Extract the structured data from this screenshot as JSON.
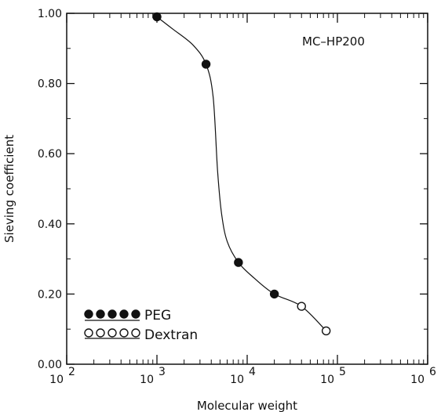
{
  "chart_data": {
    "type": "scatter",
    "xscale": "log",
    "xlim": [
      100,
      1000000
    ],
    "ylim": [
      0.0,
      1.0
    ],
    "xlabel": "Molecular weight",
    "ylabel": "Sieving coefficient",
    "annotation": "MC–HP200",
    "grid": false,
    "legend_position": "bottom-left",
    "y_ticks": [
      "0.00",
      "0.20",
      "0.40",
      "0.60",
      "0.80",
      "1.00"
    ],
    "x_ticks": [
      {
        "base": "10",
        "exp": "2"
      },
      {
        "base": "10",
        "exp": "3"
      },
      {
        "base": "10",
        "exp": "4"
      },
      {
        "base": "10",
        "exp": "5"
      },
      {
        "base": "10",
        "exp": "6"
      }
    ],
    "series": [
      {
        "name": "PEG",
        "marker": "filled-circle",
        "x": [
          1000,
          3500,
          8000,
          20000
        ],
        "y": [
          0.99,
          0.855,
          0.29,
          0.2
        ]
      },
      {
        "name": "Dextran",
        "marker": "open-circle",
        "x": [
          40000,
          75000
        ],
        "y": [
          0.165,
          0.095
        ]
      }
    ],
    "fit_curve": {
      "x": [
        1000,
        1500,
        2500,
        3500,
        4200,
        4700,
        5200,
        6000,
        8000,
        12000,
        20000,
        40000,
        75000
      ],
      "y": [
        0.99,
        0.955,
        0.91,
        0.855,
        0.76,
        0.55,
        0.43,
        0.35,
        0.29,
        0.245,
        0.2,
        0.165,
        0.095
      ]
    },
    "colors": {
      "axis": "#111111",
      "marker": "#111111",
      "background": "#ffffff"
    }
  }
}
